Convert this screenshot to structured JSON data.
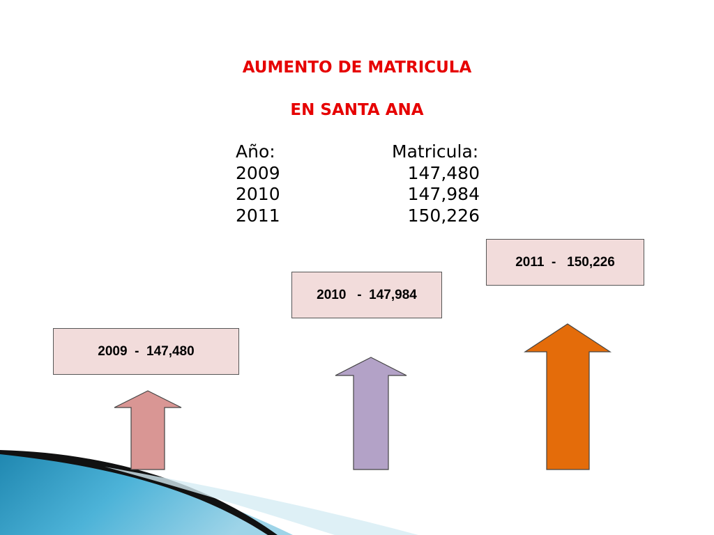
{
  "title": {
    "line1": "AUMENTO DE MATRICULA",
    "line2": "EN SANTA  ANA"
  },
  "table": {
    "headers": {
      "year": "Año:",
      "enrollment": "Matricula:"
    },
    "rows": [
      {
        "year": "2009",
        "value": "147,480"
      },
      {
        "year": "2010",
        "value": "147,984"
      },
      {
        "year": "2011",
        "value": "150,226"
      }
    ]
  },
  "callouts": [
    {
      "label": "2009  -  147,480",
      "value": 147480
    },
    {
      "label": "2010   -  147,984",
      "value": 147984
    },
    {
      "label": "2011  -   150,226",
      "value": 150226
    }
  ],
  "colors": {
    "title": "#e60000",
    "box_fill": "#f2dcdb",
    "arrow_2009": "#d99694",
    "arrow_2010": "#b3a2c7",
    "arrow_2011": "#e46c0a"
  }
}
